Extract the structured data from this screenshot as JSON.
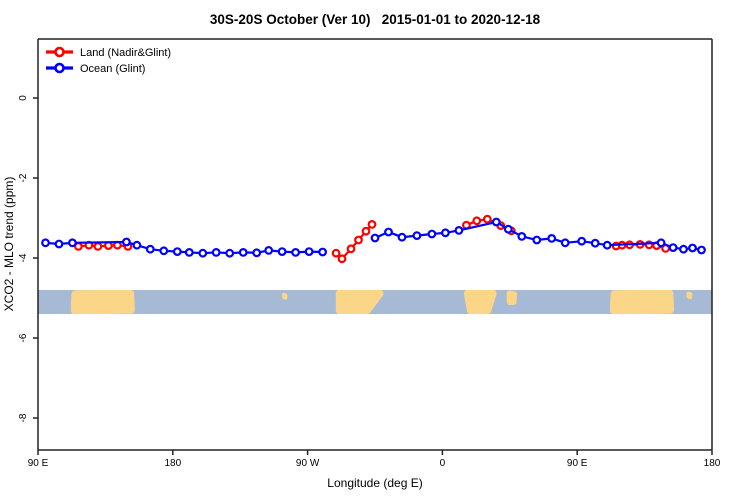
{
  "title": "30S-20S October (Ver 10)   2015-01-01 to 2020-12-18",
  "legend": {
    "items": [
      {
        "name": "land",
        "label": "Land (Nadir&Glint)",
        "color": "#ff0000"
      },
      {
        "name": "ocean",
        "label": "Ocean (Glint)",
        "color": "#0000ff"
      }
    ]
  },
  "axes": {
    "x_label": "Longitude (deg E)",
    "y_label": "XCO2 - MLO trend (ppm)",
    "x_ticks": [
      {
        "deg": 90,
        "label": "90 E"
      },
      {
        "deg": 180,
        "label": "180"
      },
      {
        "deg": 270,
        "label": "90 W"
      },
      {
        "deg": 360,
        "label": "0"
      },
      {
        "deg": 450,
        "label": "90 E"
      },
      {
        "deg": 540,
        "label": "180"
      }
    ],
    "y_ticks": [
      {
        "val": 0,
        "label": "0"
      },
      {
        "val": -2,
        "label": "-2"
      },
      {
        "val": -4,
        "label": "-4"
      },
      {
        "val": -6,
        "label": "-6"
      },
      {
        "val": -8,
        "label": "-8"
      }
    ]
  },
  "chart_data": {
    "type": "line",
    "title": "30S-20S October (Ver 10)   2015-01-01 to 2020-12-18",
    "xlabel": "Longitude (deg E)",
    "ylabel": "XCO2 - MLO trend (ppm)",
    "x_axis": {
      "min_deg": 90,
      "max_deg": 540,
      "note": "longitude axis wraps eastward: 90E, 180, 90W, 0, 90E, 180"
    },
    "ylim": [
      -8.8,
      1.5
    ],
    "grid": false,
    "legend_position": "top-left",
    "marker": "open-circle",
    "series": [
      {
        "name": "land",
        "label": "Land (Nadir&Glint)",
        "color": "#ff0000",
        "segments": [
          [
            [
              117,
              -3.71
            ],
            [
              124,
              -3.68
            ],
            [
              130,
              -3.71
            ],
            [
              137,
              -3.69
            ],
            [
              143,
              -3.68
            ],
            [
              150,
              -3.71
            ]
          ],
          [
            [
              289,
              -3.88
            ],
            [
              293,
              -4.02
            ],
            [
              299,
              -3.77
            ],
            [
              304,
              -3.55
            ],
            [
              309,
              -3.33
            ],
            [
              313,
              -3.16
            ]
          ],
          [
            [
              376,
              -3.18
            ],
            [
              383,
              -3.07
            ],
            [
              390,
              -3.03
            ],
            [
              399,
              -3.19
            ],
            [
              406,
              -3.32
            ]
          ],
          [
            [
              476,
              -3.7
            ],
            [
              480,
              -3.68
            ],
            [
              485,
              -3.67
            ],
            [
              492,
              -3.66
            ],
            [
              498,
              -3.67
            ],
            [
              503,
              -3.69
            ],
            [
              509,
              -3.76
            ]
          ]
        ]
      },
      {
        "name": "ocean",
        "label": "Ocean (Glint)",
        "color": "#0000ff",
        "segments": [
          [
            [
              95,
              -3.62
            ],
            [
              104,
              -3.65
            ],
            [
              113,
              -3.62
            ],
            [
              149,
              -3.6
            ],
            [
              156,
              -3.68
            ],
            [
              165,
              -3.78
            ],
            [
              174,
              -3.82
            ],
            [
              183,
              -3.84
            ],
            [
              191,
              -3.86
            ],
            [
              200,
              -3.88
            ],
            [
              209,
              -3.86
            ],
            [
              218,
              -3.88
            ],
            [
              227,
              -3.86
            ],
            [
              236,
              -3.87
            ],
            [
              244,
              -3.81
            ],
            [
              253,
              -3.84
            ],
            [
              262,
              -3.86
            ],
            [
              271,
              -3.84
            ],
            [
              280,
              -3.85
            ]
          ],
          [
            [
              315,
              -3.5
            ],
            [
              324,
              -3.35
            ],
            [
              333,
              -3.48
            ],
            [
              343,
              -3.44
            ],
            [
              353,
              -3.4
            ],
            [
              362,
              -3.37
            ],
            [
              371,
              -3.31
            ],
            [
              396,
              -3.1
            ],
            [
              404,
              -3.28
            ],
            [
              413,
              -3.46
            ],
            [
              423,
              -3.55
            ],
            [
              433,
              -3.51
            ],
            [
              442,
              -3.62
            ],
            [
              453,
              -3.58
            ],
            [
              462,
              -3.63
            ],
            [
              470,
              -3.68
            ],
            [
              506,
              -3.62
            ],
            [
              514,
              -3.74
            ],
            [
              521,
              -3.78
            ],
            [
              527,
              -3.75
            ],
            [
              533,
              -3.8
            ]
          ]
        ]
      }
    ],
    "map_band": {
      "description": "30S-20S latitude strip world map drawn across the plot",
      "y_top": -4.8,
      "y_bottom": -5.4,
      "ocean_color": "#a6bad6",
      "land_color": "#fbd688",
      "patches": [
        {
          "name": "australia-west-pass",
          "stroke": 8,
          "poly": [
            [
              115,
              0.18
            ],
            [
              151.5,
              0.15
            ],
            [
              152,
              0.82
            ],
            [
              114.5,
              0.85
            ]
          ]
        },
        {
          "name": "pacific-island-speck",
          "stroke": 4,
          "poly": [
            [
              254.3,
              0.2
            ],
            [
              255.2,
              0.22
            ],
            [
              255.2,
              0.32
            ],
            [
              254.3,
              0.3
            ]
          ]
        },
        {
          "name": "south-america",
          "stroke": 8,
          "poly": [
            [
              291.5,
              0.15
            ],
            [
              318,
              0.15
            ],
            [
              309.5,
              0.85
            ],
            [
              291.5,
              0.85
            ]
          ]
        },
        {
          "name": "africa",
          "stroke": 8,
          "poly": [
            [
              377,
              0.15
            ],
            [
              393.5,
              0.15
            ],
            [
              390,
              0.85
            ],
            [
              379,
              0.85
            ]
          ]
        },
        {
          "name": "madagascar",
          "stroke": 6,
          "poly": [
            [
              404.8,
              0.15
            ],
            [
              407.8,
              0.18
            ],
            [
              407.5,
              0.5
            ],
            [
              405,
              0.5
            ]
          ]
        },
        {
          "name": "australia-east-pass",
          "stroke": 8,
          "poly": [
            [
              475,
              0.18
            ],
            [
              511.5,
              0.15
            ],
            [
              512,
              0.82
            ],
            [
              474.5,
              0.85
            ]
          ]
        },
        {
          "name": "new-caledonia-speck",
          "stroke": 4,
          "poly": [
            [
              524.3,
              0.15
            ],
            [
              525.6,
              0.18
            ],
            [
              525.4,
              0.3
            ],
            [
              524.3,
              0.27
            ]
          ]
        }
      ]
    }
  }
}
